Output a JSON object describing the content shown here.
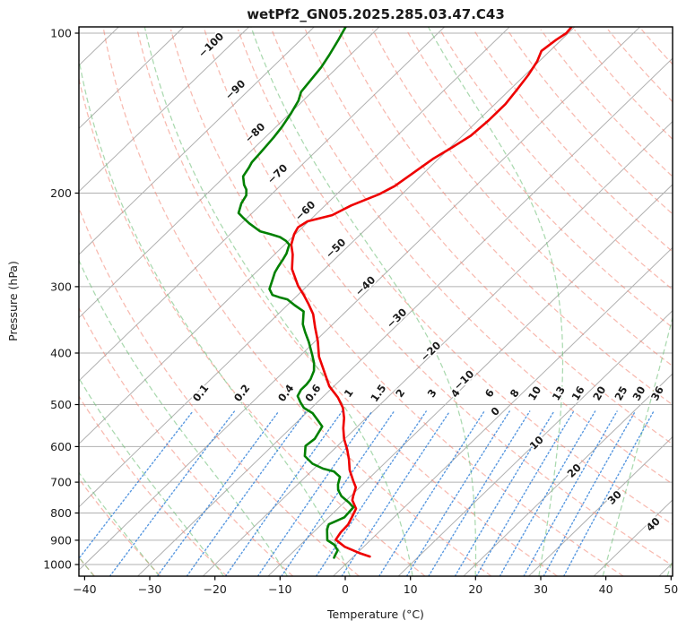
{
  "title": "wetPf2_GN05.2025.285.03.47.C43",
  "axes": {
    "xlabel": "Temperature (°C)",
    "ylabel": "Pressure (hPa)",
    "x_ticks": [
      -40,
      -30,
      -20,
      -10,
      0,
      10,
      20,
      30,
      40,
      50
    ],
    "y_ticks": [
      100,
      200,
      300,
      400,
      500,
      600,
      700,
      800,
      900,
      1000
    ],
    "x_unit": "°C",
    "y_unit": "hPa"
  },
  "chart_data": {
    "type": "line",
    "variant": "skew-t-log-p",
    "x_range_c": [
      -40,
      50
    ],
    "pressure_range_hpa": [
      1000,
      100
    ],
    "grid": true,
    "series": [
      {
        "name": "temperature",
        "color": "#ee0000",
        "style": "solid",
        "points_p_t": [
          [
            966,
            2.5
          ],
          [
            951,
            0.3
          ],
          [
            926,
            -2.9
          ],
          [
            898,
            -5.4
          ],
          [
            870,
            -5.8
          ],
          [
            841,
            -5.9
          ],
          [
            814,
            -6.5
          ],
          [
            785,
            -7.2
          ],
          [
            757,
            -9.1
          ],
          [
            744,
            -9.6
          ],
          [
            716,
            -10.6
          ],
          [
            695,
            -12.1
          ],
          [
            664,
            -14.3
          ],
          [
            634,
            -16.1
          ],
          [
            608,
            -17.9
          ],
          [
            580,
            -20.1
          ],
          [
            554,
            -21.9
          ],
          [
            530,
            -23.4
          ],
          [
            507,
            -25.2
          ],
          [
            485,
            -27.6
          ],
          [
            462,
            -30.7
          ],
          [
            430,
            -34.2
          ],
          [
            406,
            -37.0
          ],
          [
            380,
            -39.6
          ],
          [
            358,
            -42.2
          ],
          [
            338,
            -44.6
          ],
          [
            323,
            -47.0
          ],
          [
            311,
            -49.1
          ],
          [
            299,
            -51.4
          ],
          [
            278,
            -55.0
          ],
          [
            261,
            -57.2
          ],
          [
            250,
            -59.0
          ],
          [
            239,
            -60.2
          ],
          [
            232,
            -60.7
          ],
          [
            226,
            -60.2
          ],
          [
            220,
            -57.4
          ],
          [
            211,
            -56.0
          ],
          [
            201,
            -53.5
          ],
          [
            194,
            -52.4
          ],
          [
            183,
            -51.6
          ],
          [
            172,
            -50.8
          ],
          [
            164,
            -49.7
          ],
          [
            156,
            -48.7
          ],
          [
            146,
            -48.4
          ],
          [
            136,
            -48.4
          ],
          [
            128,
            -48.9
          ],
          [
            120,
            -49.5
          ],
          [
            113,
            -50.3
          ],
          [
            108,
            -51.3
          ],
          [
            103,
            -50.8
          ],
          [
            100,
            -50.3
          ],
          [
            97,
            -50.5
          ]
        ]
      },
      {
        "name": "dewpoint",
        "color": "#008000",
        "style": "solid",
        "points_p_t": [
          [
            971,
            -2.8
          ],
          [
            962,
            -3.0
          ],
          [
            941,
            -3.4
          ],
          [
            918,
            -4.8
          ],
          [
            900,
            -6.6
          ],
          [
            858,
            -8.4
          ],
          [
            840,
            -8.9
          ],
          [
            828,
            -8.3
          ],
          [
            815,
            -7.6
          ],
          [
            781,
            -7.8
          ],
          [
            765,
            -9.2
          ],
          [
            744,
            -11.4
          ],
          [
            724,
            -12.9
          ],
          [
            707,
            -13.8
          ],
          [
            684,
            -14.7
          ],
          [
            668,
            -16.5
          ],
          [
            660,
            -18.6
          ],
          [
            646,
            -21.0
          ],
          [
            625,
            -23.4
          ],
          [
            598,
            -24.9
          ],
          [
            580,
            -24.6
          ],
          [
            550,
            -25.4
          ],
          [
            535,
            -27.1
          ],
          [
            519,
            -29.0
          ],
          [
            507,
            -31.2
          ],
          [
            495,
            -32.6
          ],
          [
            482,
            -34.0
          ],
          [
            469,
            -34.5
          ],
          [
            458,
            -34.5
          ],
          [
            448,
            -34.7
          ],
          [
            432,
            -35.5
          ],
          [
            418,
            -36.7
          ],
          [
            404,
            -38.2
          ],
          [
            381,
            -40.9
          ],
          [
            366,
            -42.9
          ],
          [
            353,
            -44.6
          ],
          [
            334,
            -46.5
          ],
          [
            325,
            -48.9
          ],
          [
            317,
            -50.9
          ],
          [
            314,
            -52.5
          ],
          [
            311,
            -53.9
          ],
          [
            303,
            -55.3
          ],
          [
            290,
            -56.4
          ],
          [
            282,
            -57.1
          ],
          [
            275,
            -57.5
          ],
          [
            267,
            -57.9
          ],
          [
            260,
            -58.3
          ],
          [
            250,
            -59.3
          ],
          [
            246,
            -60.4
          ],
          [
            242,
            -61.9
          ],
          [
            239,
            -63.8
          ],
          [
            236,
            -65.9
          ],
          [
            228,
            -68.8
          ],
          [
            222,
            -70.8
          ],
          [
            218,
            -72.1
          ],
          [
            209,
            -73.2
          ],
          [
            202,
            -73.7
          ],
          [
            197,
            -74.6
          ],
          [
            193,
            -75.7
          ],
          [
            186,
            -77.2
          ],
          [
            179,
            -77.7
          ],
          [
            175,
            -78.1
          ],
          [
            168,
            -78.3
          ],
          [
            162,
            -78.5
          ],
          [
            157,
            -78.7
          ],
          [
            150,
            -79.1
          ],
          [
            142,
            -79.8
          ],
          [
            134,
            -80.7
          ],
          [
            129,
            -81.7
          ],
          [
            124,
            -82.0
          ],
          [
            116,
            -82.5
          ],
          [
            110,
            -83.2
          ],
          [
            103,
            -84.2
          ],
          [
            100,
            -84.7
          ],
          [
            97,
            -85.2
          ]
        ]
      }
    ],
    "guides": {
      "isotherms": {
        "color": "#b0b0b0",
        "start_c": -120,
        "end_c": 50,
        "step_c": 10
      },
      "dry_adiabats": {
        "color": "#f28170",
        "style": "dashed",
        "theta_start_c": -40,
        "theta_end_c": 200,
        "step_c": 10
      },
      "moist_adiabats": {
        "color": "#72bf7a",
        "style": "dashed",
        "t0_start_c": -40,
        "t0_end_c": 60,
        "step_c": 10
      },
      "mixing_ratio_lines": {
        "color": "#2e7ed8",
        "style": "dotted",
        "unit": "g/kg",
        "top_pressure_hpa": 500,
        "values": [
          0.1,
          0.2,
          0.4,
          0.6,
          1,
          1.5,
          2,
          3,
          4,
          6,
          8,
          10,
          13,
          16,
          20,
          25,
          30,
          36
        ]
      }
    },
    "isotherm_labels": [
      {
        "value": -100,
        "color": "#2272c3"
      },
      {
        "value": -90,
        "color": "#2272c3"
      },
      {
        "value": -80,
        "color": "#2272c3"
      },
      {
        "value": -70,
        "color": "#2272c3"
      },
      {
        "value": -60,
        "color": "#2272c3"
      },
      {
        "value": -50,
        "color": "#2272c3"
      },
      {
        "value": -40,
        "color": "#2272c3"
      },
      {
        "value": -30,
        "color": "#2272c3"
      },
      {
        "value": -20,
        "color": "#2272c3"
      },
      {
        "value": -10,
        "color": "#2272c3"
      },
      {
        "value": 0,
        "color": "#666666"
      },
      {
        "value": 10,
        "color": "#d62728"
      },
      {
        "value": 20,
        "color": "#d62728"
      },
      {
        "value": 30,
        "color": "#d62728"
      },
      {
        "value": 40,
        "color": "#d62728"
      }
    ]
  },
  "colors": {
    "background": "#ffffff",
    "frame": "#000000",
    "grid": "#b0b0b0",
    "temperature_line": "#ee0000",
    "dewpoint_line": "#008000",
    "mixing_label_blue": "#2272c3",
    "isotherm_label_red": "#d62728",
    "isotherm_label_gray": "#666666"
  }
}
